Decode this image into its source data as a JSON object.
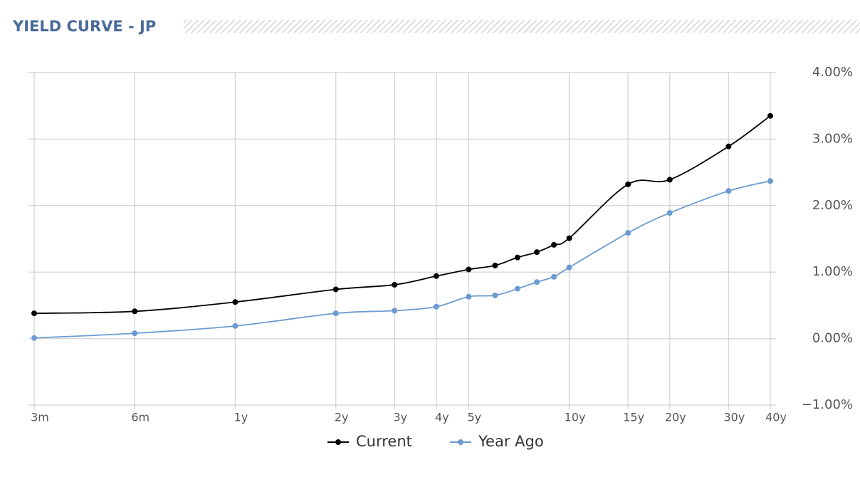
{
  "chart_data": {
    "type": "line",
    "title": "YIELD CURVE - JP",
    "x": [
      0.25,
      0.5,
      1,
      2,
      3,
      4,
      5,
      6,
      7,
      8,
      9,
      10,
      15,
      20,
      30,
      40
    ],
    "xscale": "log",
    "xlim": [
      0.25,
      40
    ],
    "xticks": [
      {
        "value": 0.25,
        "label": "3m"
      },
      {
        "value": 0.5,
        "label": "6m"
      },
      {
        "value": 1,
        "label": "1y"
      },
      {
        "value": 2,
        "label": "2y"
      },
      {
        "value": 3,
        "label": "3y"
      },
      {
        "value": 4,
        "label": "4y"
      },
      {
        "value": 5,
        "label": "5y"
      },
      {
        "value": 10,
        "label": "10y"
      },
      {
        "value": 15,
        "label": "15y"
      },
      {
        "value": 20,
        "label": "20y"
      },
      {
        "value": 30,
        "label": "30y"
      },
      {
        "value": 40,
        "label": "40y"
      }
    ],
    "ylim": [
      -1,
      4
    ],
    "yticks": [
      {
        "value": -1,
        "label": "−1.00%"
      },
      {
        "value": 0,
        "label": "0.00%"
      },
      {
        "value": 1,
        "label": "1.00%"
      },
      {
        "value": 2,
        "label": "2.00%"
      },
      {
        "value": 3,
        "label": "3.00%"
      },
      {
        "value": 4,
        "label": "4.00%"
      }
    ],
    "grid": true,
    "legend": "bottom",
    "series": [
      {
        "name": "Current",
        "color": "#000000",
        "values": [
          0.38,
          0.41,
          0.55,
          0.74,
          0.81,
          0.94,
          1.04,
          1.1,
          1.22,
          1.3,
          1.41,
          1.51,
          2.32,
          2.39,
          2.89,
          3.35
        ]
      },
      {
        "name": "Year Ago",
        "color": "#6b9bd1",
        "values": [
          0.01,
          0.08,
          0.19,
          0.38,
          0.42,
          0.48,
          0.63,
          0.65,
          0.75,
          0.85,
          0.93,
          1.07,
          1.59,
          1.89,
          2.22,
          2.37
        ]
      }
    ]
  }
}
